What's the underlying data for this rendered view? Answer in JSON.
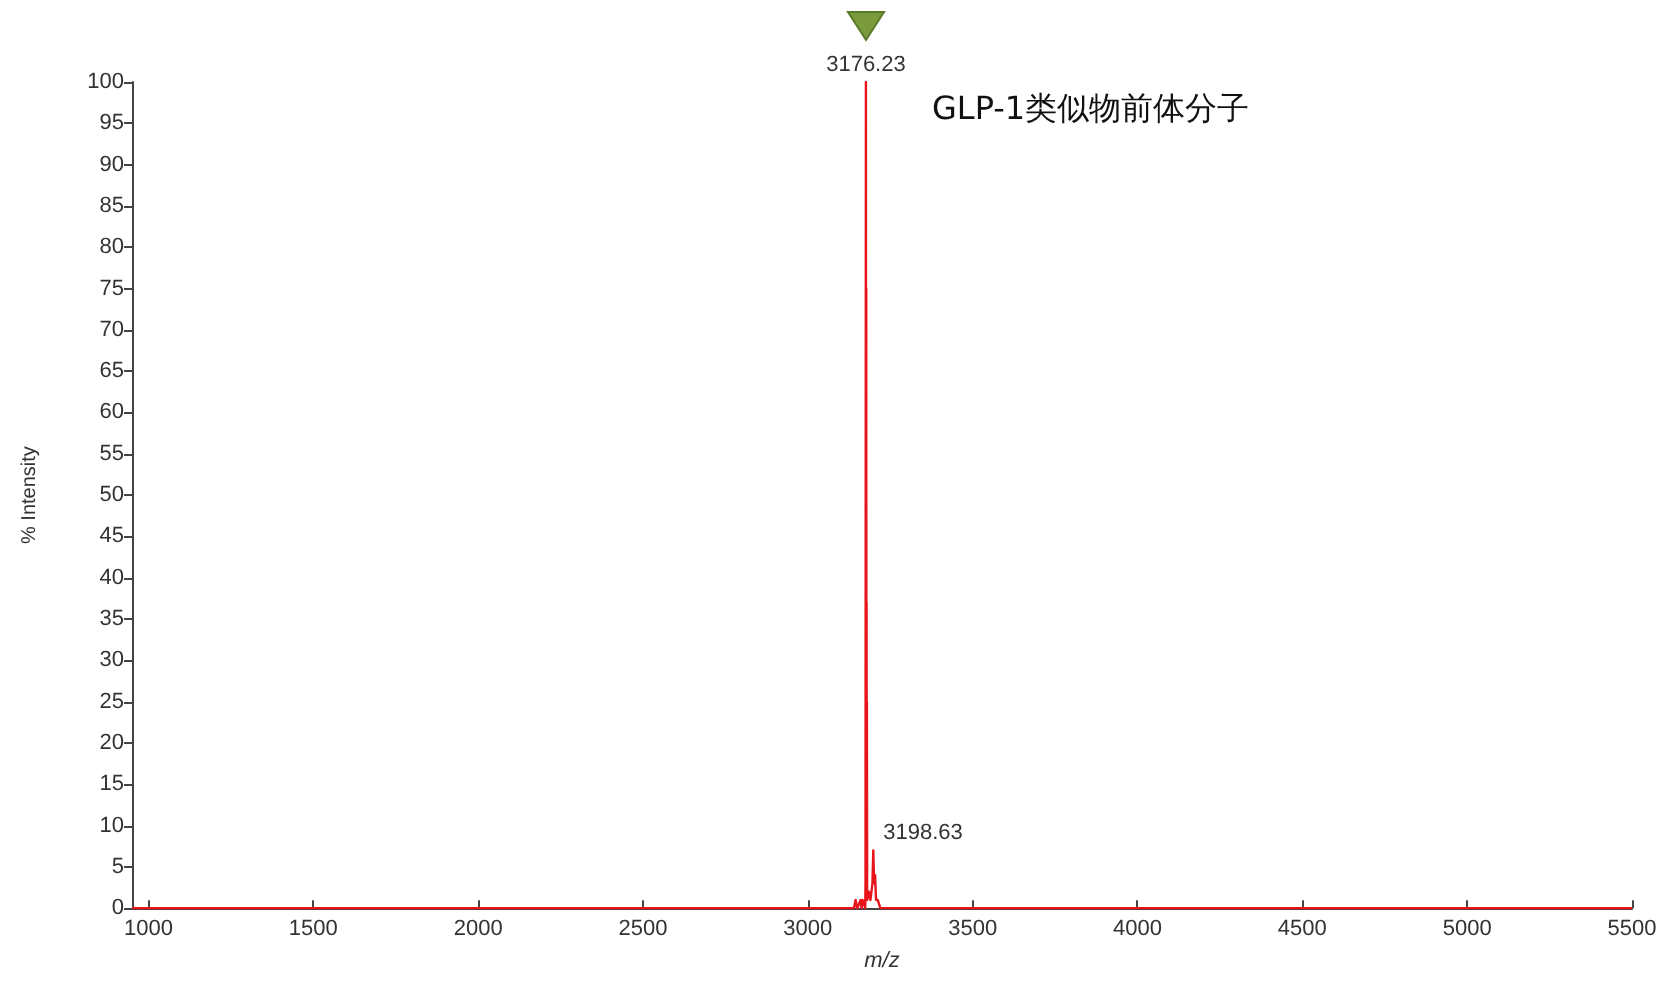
{
  "chart_data": {
    "type": "line",
    "xlabel": "m/z",
    "ylabel": "% Intensity",
    "annotations": [
      "GLP-1类似物前体分子",
      {
        "text": "3176.23",
        "x": 3176.23,
        "y": 100
      },
      {
        "text": "3198.63",
        "x": 3198.63,
        "y": 7
      }
    ],
    "series": [
      {
        "color": "#e8141c",
        "x": [
          950,
          3140,
          3145,
          3150,
          3160,
          3163,
          3166,
          3174,
          3175,
          3176.23,
          3176.8,
          3177.2,
          3177.8,
          3178.2,
          3178.8,
          3179.2,
          3180,
          3185,
          3190,
          3196,
          3198.63,
          3201,
          3204,
          3207,
          3212,
          3220,
          5500
        ],
        "values": [
          0,
          0,
          1,
          0,
          1,
          0,
          1,
          0,
          3,
          100,
          2,
          75,
          3,
          37,
          2,
          25,
          1,
          2,
          1,
          3,
          7,
          3,
          4,
          1,
          1,
          0,
          0
        ]
      }
    ],
    "xlim": [
      950,
      5500
    ],
    "xticks": [
      1000,
      1500,
      2000,
      2500,
      3000,
      3500,
      4000,
      4500,
      5000,
      5500
    ],
    "ylim": [
      0,
      100
    ],
    "yticks": [
      0,
      5,
      10,
      15,
      20,
      25,
      30,
      35,
      40,
      45,
      50,
      55,
      60,
      65,
      70,
      75,
      80,
      85,
      90,
      95,
      100
    ],
    "grid": false,
    "marker": "none",
    "line_style": "solid"
  }
}
